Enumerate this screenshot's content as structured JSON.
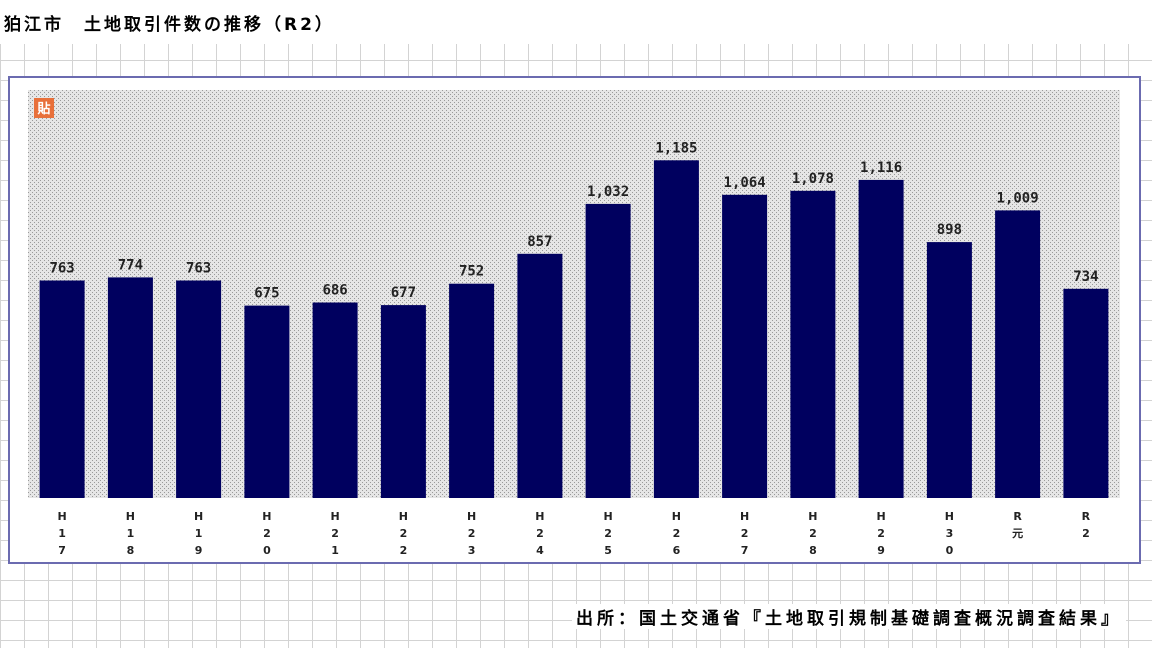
{
  "title": "狛江市　土地取引件数の推移（R2）",
  "source": "出所：国土交通省『土地取引規制基礎調査概況調査結果』",
  "badge": "貼",
  "colors": {
    "bar": "#00005f",
    "plot_bg": "#e6e6e6",
    "dots": "#9a9a9a",
    "frame": "#6b6bb0"
  },
  "chart_data": {
    "type": "bar",
    "categories": [
      "H\n1\n7",
      "H\n1\n8",
      "H\n1\n9",
      "H\n2\n0",
      "H\n2\n1",
      "H\n2\n2",
      "H\n2\n3",
      "H\n2\n4",
      "H\n2\n5",
      "H\n2\n6",
      "H\n2\n7",
      "H\n2\n8",
      "H\n2\n9",
      "H\n3\n0",
      "R\n元",
      "R\n2"
    ],
    "values": [
      763,
      774,
      763,
      675,
      686,
      677,
      752,
      857,
      1032,
      1185,
      1064,
      1078,
      1116,
      898,
      1009,
      734
    ],
    "labels": [
      "763",
      "774",
      "763",
      "675",
      "686",
      "677",
      "752",
      "857",
      "1,032",
      "1,185",
      "1,064",
      "1,078",
      "1,116",
      "898",
      "1,009",
      "734"
    ],
    "ylim": [
      0,
      1300
    ],
    "grid": false,
    "legend": "none"
  }
}
